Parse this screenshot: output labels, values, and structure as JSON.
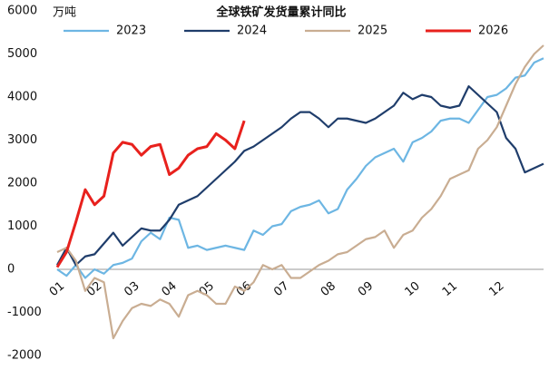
{
  "chart_data": {
    "type": "line",
    "title": "全球铁矿发货量累计同比",
    "unit": "万吨",
    "categories": [
      "01",
      null,
      null,
      null,
      "02",
      null,
      null,
      null,
      "03",
      null,
      null,
      null,
      "04",
      null,
      null,
      null,
      "05",
      null,
      null,
      null,
      "06",
      null,
      null,
      null,
      "07",
      null,
      null,
      null,
      null,
      "08",
      null,
      null,
      null,
      "09",
      null,
      null,
      null,
      null,
      "10",
      null,
      null,
      null,
      "11",
      null,
      null,
      null,
      null,
      "12",
      null,
      null,
      null,
      null,
      null
    ],
    "series": [
      {
        "name": "2023",
        "color": "#6db6e3",
        "values": [
          0,
          -150,
          100,
          -200,
          0,
          -100,
          100,
          150,
          250,
          650,
          850,
          700,
          1200,
          1150,
          500,
          550,
          450,
          500,
          550,
          500,
          450,
          900,
          800,
          1000,
          1050,
          1350,
          1450,
          1500,
          1600,
          1300,
          1400,
          1850,
          2100,
          2400,
          2600,
          2700,
          2800,
          2500,
          2950,
          3050,
          3200,
          3450,
          3500,
          3500,
          3400,
          3700,
          4000,
          4050,
          4200,
          4450,
          4500,
          4800,
          4900
        ]
      },
      {
        "name": "2024",
        "color": "#1f3d6b",
        "values": [
          100,
          500,
          100,
          300,
          350,
          600,
          850,
          550,
          750,
          950,
          900,
          900,
          1150,
          1500,
          1600,
          1700,
          1900,
          2100,
          2300,
          2500,
          2750,
          2850,
          3000,
          3150,
          3300,
          3500,
          3650,
          3650,
          3500,
          3300,
          3500,
          3500,
          3450,
          3400,
          3500,
          3650,
          3800,
          4100,
          3950,
          4050,
          4000,
          3800,
          3750,
          3800,
          4250,
          4050,
          3850,
          3650,
          3050,
          2800,
          2250,
          2350,
          2450
        ]
      },
      {
        "name": "2025",
        "color": "#c9ad92",
        "values": [
          400,
          500,
          200,
          -500,
          -200,
          -300,
          -1600,
          -1200,
          -900,
          -800,
          -850,
          -700,
          -800,
          -1100,
          -600,
          -500,
          -600,
          -800,
          -800,
          -400,
          -500,
          -300,
          100,
          0,
          100,
          -200,
          -200,
          -50,
          100,
          200,
          350,
          400,
          550,
          700,
          750,
          900,
          500,
          800,
          900,
          1200,
          1400,
          1700,
          2100,
          2200,
          2300,
          2800,
          3000,
          3300,
          3800,
          4300,
          4700,
          5000,
          5200
        ]
      },
      {
        "name": "2026",
        "color": "#e8211d",
        "values": [
          50,
          400,
          1100,
          1850,
          1500,
          1700,
          2700,
          2950,
          2900,
          2650,
          2850,
          2900,
          2200,
          2350,
          2650,
          2800,
          2850,
          3150,
          3000,
          2800,
          3450,
          null,
          null,
          null,
          null,
          null,
          null,
          null,
          null,
          null,
          null,
          null,
          null,
          null,
          null,
          null,
          null,
          null,
          null,
          null,
          null,
          null,
          null,
          null,
          null,
          null,
          null,
          null,
          null,
          null,
          null,
          null,
          null
        ]
      }
    ],
    "ylim": [
      -2000,
      6000
    ],
    "yticks": [
      -2000,
      -1000,
      0,
      1000,
      2000,
      3000,
      4000,
      5000,
      6000
    ]
  }
}
